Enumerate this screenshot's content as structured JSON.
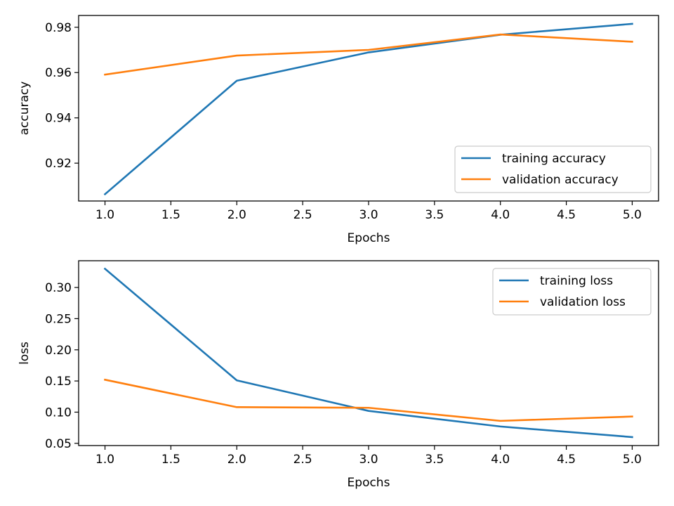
{
  "chart_data": [
    {
      "type": "line",
      "xlabel": "Epochs",
      "ylabel": "accuracy",
      "xlim": [
        0.8,
        5.2
      ],
      "ylim": [
        0.9033,
        0.9852
      ],
      "xticks": [
        1.0,
        1.5,
        2.0,
        2.5,
        3.0,
        3.5,
        4.0,
        4.5,
        5.0
      ],
      "xtick_labels": [
        "1.0",
        "1.5",
        "2.0",
        "2.5",
        "3.0",
        "3.5",
        "4.0",
        "4.5",
        "5.0"
      ],
      "yticks": [
        0.92,
        0.94,
        0.96,
        0.98
      ],
      "ytick_labels": [
        "0.92",
        "0.94",
        "0.96",
        "0.98"
      ],
      "legend_position": "lower-right",
      "grid": false,
      "x": [
        1,
        2,
        3,
        4,
        5
      ],
      "series": [
        {
          "name": "training accuracy",
          "color": "#1f77b4",
          "values": [
            0.9063,
            0.9564,
            0.9689,
            0.9767,
            0.9815
          ]
        },
        {
          "name": "validation accuracy",
          "color": "#ff7f0e",
          "values": [
            0.9591,
            0.9675,
            0.97,
            0.9768,
            0.9736
          ]
        }
      ]
    },
    {
      "type": "line",
      "xlabel": "Epochs",
      "ylabel": "loss",
      "xlim": [
        0.8,
        5.2
      ],
      "ylim": [
        0.0464,
        0.3429
      ],
      "xticks": [
        1.0,
        1.5,
        2.0,
        2.5,
        3.0,
        3.5,
        4.0,
        4.5,
        5.0
      ],
      "xtick_labels": [
        "1.0",
        "1.5",
        "2.0",
        "2.5",
        "3.0",
        "3.5",
        "4.0",
        "4.5",
        "5.0"
      ],
      "yticks": [
        0.05,
        0.1,
        0.15,
        0.2,
        0.25,
        0.3
      ],
      "ytick_labels": [
        "0.05",
        "0.10",
        "0.15",
        "0.20",
        "0.25",
        "0.30"
      ],
      "legend_position": "upper-right",
      "grid": false,
      "x": [
        1,
        2,
        3,
        4,
        5
      ],
      "series": [
        {
          "name": "training loss",
          "color": "#1f77b4",
          "values": [
            0.33,
            0.151,
            0.102,
            0.077,
            0.06
          ]
        },
        {
          "name": "validation loss",
          "color": "#ff7f0e",
          "values": [
            0.152,
            0.108,
            0.107,
            0.086,
            0.093
          ]
        }
      ]
    }
  ]
}
